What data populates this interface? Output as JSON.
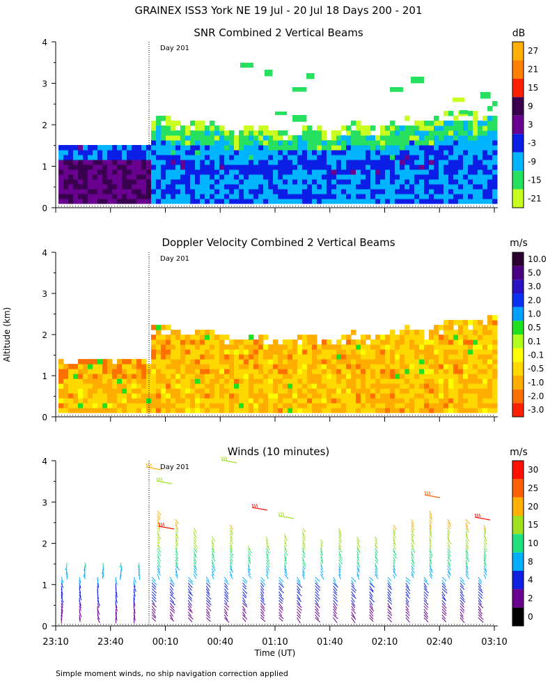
{
  "main_title": "GRAINEX ISS3 York NE  19 Jul - 20 Jul 18 Days 200 - 201",
  "footnote": "Simple moment winds, no ship navigation correction applied",
  "ylabel": "Altitude (km)",
  "xlabel": "Time (UT)",
  "day_marker": "Day 201",
  "x_ticks": [
    "23:10",
    "23:40",
    "00:10",
    "00:40",
    "01:10",
    "01:40",
    "02:10",
    "02:40",
    "03:10"
  ],
  "y_ticks": [
    "0",
    "1",
    "2",
    "3",
    "4"
  ],
  "panels": {
    "snr": {
      "title": "SNR Combined 2 Vertical Beams",
      "unit": "dB",
      "colorbar_labels": [
        "27",
        "21",
        "15",
        "9",
        "3",
        "-3",
        "-9",
        "-15",
        "-21"
      ],
      "colors": [
        "#ffb000",
        "#ff7f00",
        "#ff2000",
        "#3a0050",
        "#6a0090",
        "#0a1ee6",
        "#00b4ff",
        "#28e060",
        "#c8ff20"
      ]
    },
    "doppler": {
      "title": "Doppler Velocity Combined 2 Vertical Beams",
      "unit": "m/s",
      "colorbar_labels": [
        "10.0",
        "5.0",
        "3.0",
        "2.0",
        "1.0",
        "0.5",
        "0.1",
        "-0.1",
        "-0.5",
        "-1.0",
        "-2.0",
        "-3.0"
      ],
      "colors": [
        "#2a0030",
        "#4a0080",
        "#2a10c0",
        "#0a30f0",
        "#00a0ff",
        "#20e020",
        "#b0ff20",
        "#ffff00",
        "#ffd800",
        "#ffae00",
        "#ff7000",
        "#ff2000"
      ]
    },
    "winds": {
      "title": "Winds (10 minutes)",
      "unit": "m/s",
      "colorbar_labels": [
        "30",
        "25",
        "20",
        "15",
        "10",
        "8",
        "4",
        "2",
        "0"
      ],
      "colors": [
        "#ff1000",
        "#ff6000",
        "#ffb000",
        "#a0e020",
        "#20e080",
        "#00b0ff",
        "#1020e0",
        "#6a0090",
        "#000000"
      ]
    }
  },
  "chart_data": [
    {
      "type": "heatmap",
      "title": "SNR Combined 2 Vertical Beams",
      "ylabel": "Altitude (km)",
      "colorbar_unit": "dB",
      "x_range": [
        "23:10",
        "03:10"
      ],
      "ylim": [
        0,
        4
      ],
      "colorbar_levels": [
        27,
        21,
        15,
        9,
        3,
        -3,
        -9,
        -15,
        -21
      ],
      "coverage_top_km": {
        "before_day_201": 1.4,
        "after_day_201": [
          2.2,
          2.0,
          1.9,
          1.8,
          1.9,
          2.1,
          2.2,
          2.3
        ]
      }
    },
    {
      "type": "heatmap",
      "title": "Doppler Velocity Combined 2 Vertical Beams",
      "ylabel": "Altitude (km)",
      "colorbar_unit": "m/s",
      "x_range": [
        "23:10",
        "03:10"
      ],
      "ylim": [
        0,
        4
      ],
      "colorbar_levels": [
        10.0,
        5.0,
        3.0,
        2.0,
        1.0,
        0.5,
        0.1,
        -0.1,
        -0.5,
        -1.0,
        -2.0,
        -3.0
      ]
    },
    {
      "type": "scatter",
      "title": "Winds (10 minutes)",
      "xlabel": "Time (UT)",
      "ylabel": "Altitude (km)",
      "colorbar_unit": "m/s",
      "ylim": [
        0,
        4
      ],
      "colorbar_levels": [
        30,
        25,
        20,
        15,
        10,
        8,
        4,
        2,
        0
      ],
      "profile_times": [
        "23:10",
        "23:20",
        "23:30",
        "23:40",
        "23:50",
        "00:00",
        "00:10",
        "00:20",
        "00:30",
        "00:40",
        "00:50",
        "01:00",
        "01:10",
        "01:20",
        "01:30",
        "01:40",
        "01:50",
        "02:00",
        "02:10",
        "02:20",
        "02:30",
        "02:40",
        "02:50",
        "03:00"
      ],
      "profile_top_km": [
        1.6,
        1.6,
        1.6,
        1.6,
        1.6,
        2.8,
        2.6,
        2.4,
        2.2,
        2.5,
        2.0,
        2.2,
        2.3,
        2.4,
        2.1,
        2.4,
        2.2,
        2.2,
        2.5,
        2.6,
        2.8,
        2.6,
        2.6,
        2.5
      ]
    }
  ]
}
